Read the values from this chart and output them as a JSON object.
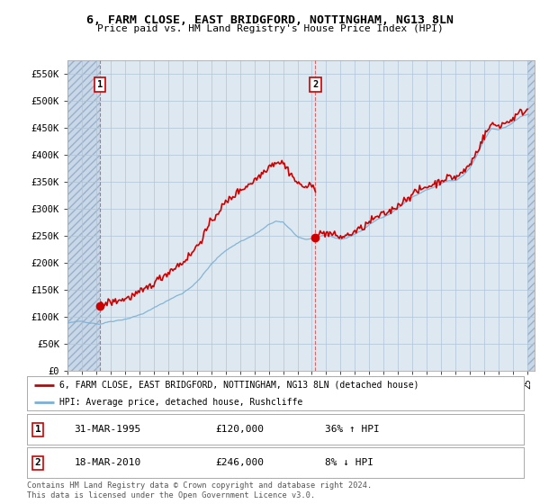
{
  "title": "6, FARM CLOSE, EAST BRIDGFORD, NOTTINGHAM, NG13 8LN",
  "subtitle": "Price paid vs. HM Land Registry's House Price Index (HPI)",
  "ylabel_ticks": [
    "£0",
    "£50K",
    "£100K",
    "£150K",
    "£200K",
    "£250K",
    "£300K",
    "£350K",
    "£400K",
    "£450K",
    "£500K",
    "£550K"
  ],
  "ytick_values": [
    0,
    50000,
    100000,
    150000,
    200000,
    250000,
    300000,
    350000,
    400000,
    450000,
    500000,
    550000
  ],
  "ylim": [
    0,
    575000
  ],
  "xlim_min": 1993.0,
  "xlim_max": 2025.5,
  "sale1_x": 1995.25,
  "sale1_y": 120000,
  "sale1_date": "31-MAR-1995",
  "sale1_price": 120000,
  "sale1_pct": "36% ↑ HPI",
  "sale2_x": 2010.25,
  "sale2_y": 246000,
  "sale2_date": "18-MAR-2010",
  "sale2_price": 246000,
  "sale2_pct": "8% ↓ HPI",
  "legend_line1": "6, FARM CLOSE, EAST BRIDGFORD, NOTTINGHAM, NG13 8LN (detached house)",
  "legend_line2": "HPI: Average price, detached house, Rushcliffe",
  "footnote": "Contains HM Land Registry data © Crown copyright and database right 2024.\nThis data is licensed under the Open Government Licence v3.0.",
  "sale_color": "#cc0000",
  "hpi_color": "#7bafd4",
  "chart_bg": "#dde8f0",
  "hatch_bg": "#c8d8e8",
  "background_color": "#ffffff",
  "grid_color": "#b0c4d8",
  "dashed_color": "#e08080"
}
